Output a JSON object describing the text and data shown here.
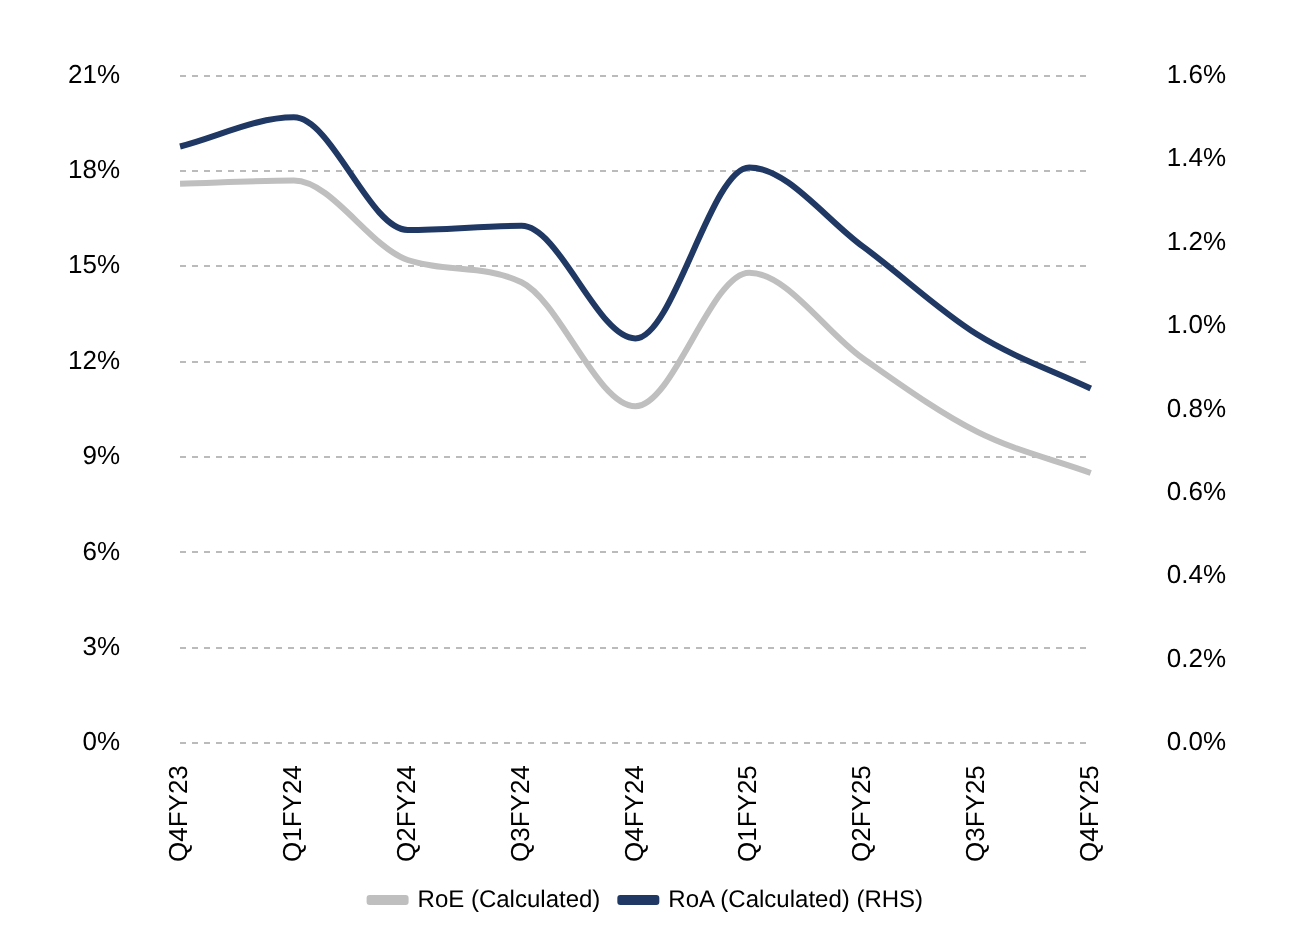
{
  "chart_data": {
    "type": "line",
    "categories": [
      "Q4FY23",
      "Q1FY24",
      "Q2FY24",
      "Q3FY24",
      "Q4FY24",
      "Q1FY25",
      "Q2FY25",
      "Q3FY25",
      "Q4FY25"
    ],
    "series": [
      {
        "name": "RoE (Calculated)",
        "color": "#bfbfbf",
        "values": [
          17.6,
          17.7,
          15.2,
          14.5,
          10.6,
          14.8,
          12.1,
          9.8,
          8.5
        ]
      },
      {
        "name": "RoA (Calculated) (RHS)",
        "color": "#1f3864",
        "axis": "y2",
        "values": [
          1.43,
          1.5,
          1.23,
          1.24,
          0.97,
          1.38,
          1.19,
          0.98,
          0.85
        ]
      }
    ],
    "ylim": [
      0,
      21
    ],
    "yticks": [
      {
        "value": 0,
        "label": "0%"
      },
      {
        "value": 3,
        "label": "3%"
      },
      {
        "value": 6,
        "label": "6%"
      },
      {
        "value": 9,
        "label": "9%"
      },
      {
        "value": 12,
        "label": "12%"
      },
      {
        "value": 15,
        "label": "15%"
      },
      {
        "value": 18,
        "label": "18%"
      },
      {
        "value": 21,
        "label": "21%"
      }
    ],
    "y2lim": [
      0,
      1.6
    ],
    "y2ticks": [
      {
        "value": 0,
        "label": "0.0%"
      },
      {
        "value": 0.2,
        "label": "0.2%"
      },
      {
        "value": 0.4,
        "label": "0.4%"
      },
      {
        "value": 0.6,
        "label": "0.6%"
      },
      {
        "value": 0.8,
        "label": "0.8%"
      },
      {
        "value": 1.0,
        "label": "1.0%"
      },
      {
        "value": 1.2,
        "label": "1.2%"
      },
      {
        "value": 1.4,
        "label": "1.4%"
      },
      {
        "value": 1.6,
        "label": "1.6%"
      }
    ],
    "grid": "y",
    "legend": "bottom",
    "marker": "none",
    "line_style": "solid"
  }
}
